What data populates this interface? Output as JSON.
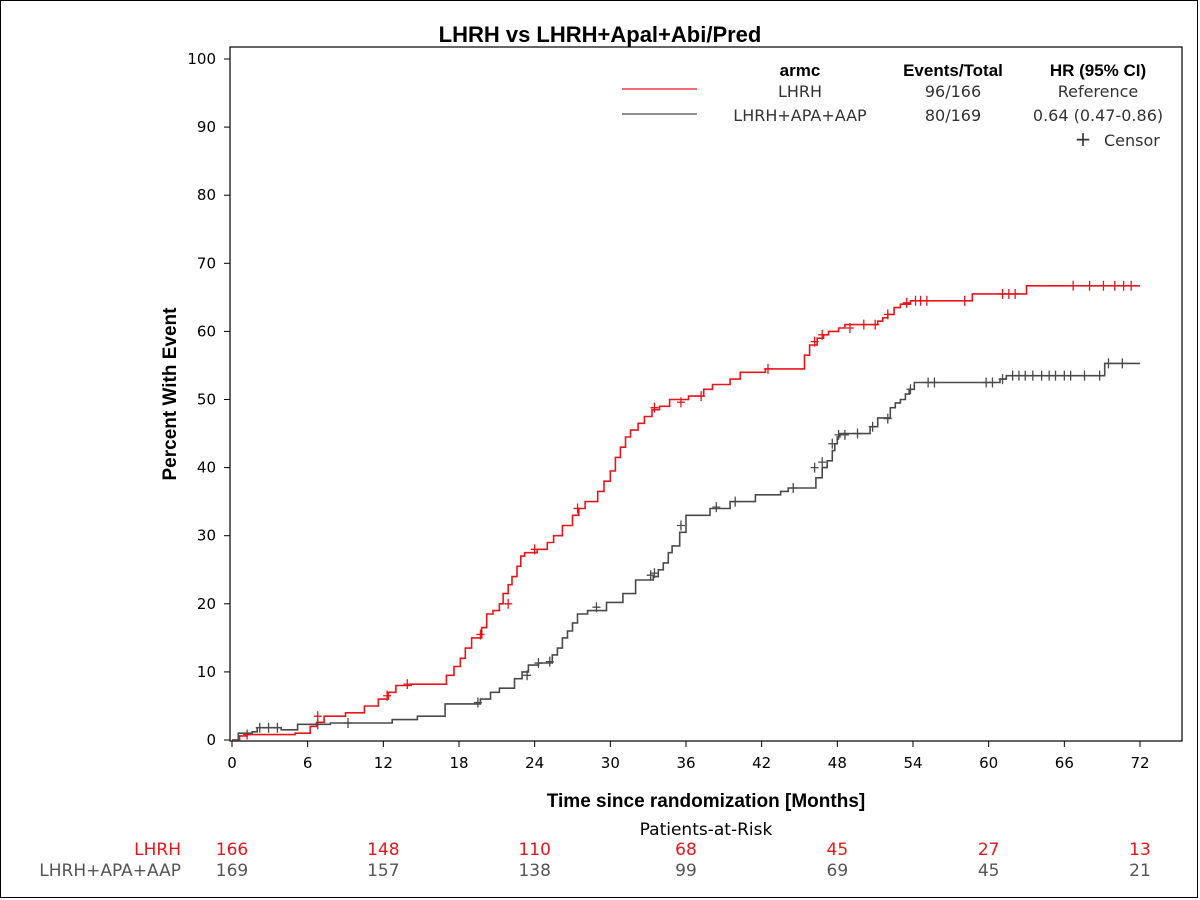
{
  "chart_data": {
    "type": "line",
    "title": "LHRH vs LHRH+Apal+Abi/Pred",
    "xlabel": "Time since randomization [Months]",
    "ylabel": "Percent With Event",
    "xlim": [
      0,
      72
    ],
    "ylim": [
      0,
      100
    ],
    "x_ticks": [
      "0",
      "6",
      "12",
      "18",
      "24",
      "30",
      "36",
      "42",
      "48",
      "54",
      "60",
      "66",
      "72"
    ],
    "y_ticks": [
      "0",
      "10",
      "20",
      "30",
      "40",
      "50",
      "60",
      "70",
      "80",
      "90",
      "100"
    ],
    "legend": {
      "headers": [
        "armc",
        "Events/Total",
        "HR (95% CI)"
      ],
      "rows": [
        {
          "name": "LHRH",
          "events": "96/166",
          "hr": "Reference"
        },
        {
          "name": "LHRH+APA+AAP",
          "events": "80/169",
          "hr": "0.64 (0.47-0.86)"
        }
      ],
      "censor_symbol": "+",
      "censor_label": "Censor",
      "placement": "top-right"
    },
    "series": [
      {
        "name": "LHRH",
        "color": "#e8151b",
        "x": [
          0,
          0.6,
          1.2,
          5,
          6.2,
          6.7,
          7.3,
          9,
          10.5,
          11.6,
          12.4,
          13,
          14.2,
          17,
          17.6,
          18.1,
          18.5,
          19,
          19.8,
          20.2,
          20.7,
          21.2,
          21.5,
          21.9,
          22.2,
          22.6,
          22.9,
          23.2,
          24.2,
          25,
          25.5,
          26.2,
          27,
          27.5,
          28,
          29,
          29.5,
          30,
          30.4,
          30.8,
          31.2,
          31.6,
          32.2,
          32.7,
          33.3,
          33.9,
          34.7,
          36.2,
          37.4,
          38.1,
          39.5,
          40.3,
          42.3,
          45.4,
          45.8,
          46.4,
          46.9,
          47.3,
          48.1,
          48.6,
          49,
          51.2,
          51.6,
          52,
          52.5,
          53,
          53.8,
          54.1,
          58.7,
          63,
          68,
          72
        ],
        "y": [
          0,
          0.6,
          0.8,
          1,
          2,
          2.6,
          3.5,
          4,
          5,
          6,
          7,
          8,
          8.2,
          9.5,
          10.8,
          12,
          13.5,
          15,
          16.5,
          18.5,
          19,
          20,
          21.5,
          22.8,
          24,
          25.5,
          27,
          27.5,
          28,
          29,
          30,
          31.5,
          33,
          34,
          35,
          36.5,
          38,
          39.5,
          41.5,
          43,
          44.5,
          45.5,
          46.5,
          47.5,
          48.5,
          49,
          50,
          50.5,
          51.5,
          52.2,
          53,
          54,
          54.5,
          56.5,
          58,
          59,
          59.5,
          60,
          60.5,
          61,
          61,
          61.5,
          62,
          62.5,
          63.5,
          64,
          64.5,
          64.5,
          65.5,
          66.7,
          66.7,
          66.7
        ],
        "censors_x": [
          1.2,
          6.8,
          12.3,
          13.9,
          19.7,
          21.9,
          24,
          27.4,
          33.5,
          35.6,
          37.2,
          42.5,
          46.2,
          46.8,
          49,
          50.1,
          51,
          52,
          53.5,
          54.2,
          54.6,
          55.1,
          58.1,
          61.1,
          61.6,
          62.1,
          66.7,
          68,
          69.1,
          70,
          70.7,
          71.3
        ],
        "censors_y": [
          0.8,
          3.5,
          6.5,
          8.2,
          15.5,
          20,
          28,
          34,
          48.8,
          49.6,
          50.5,
          54.5,
          58.5,
          59.5,
          60.5,
          61,
          61,
          62.5,
          64.2,
          64.5,
          64.5,
          64.5,
          64.5,
          65.5,
          65.5,
          65.5,
          66.7,
          66.7,
          66.7,
          66.7,
          66.7,
          66.7
        ]
      },
      {
        "name": "LHRH+APA+AAP",
        "color": "#4a4a4a",
        "x": [
          0,
          0.5,
          1.6,
          2,
          3.9,
          5.2,
          7.8,
          12.7,
          14.7,
          16.9,
          19.7,
          20.5,
          21.2,
          22.4,
          23,
          23.5,
          24.3,
          25.4,
          25.8,
          26.2,
          26.6,
          27,
          27.4,
          28.2,
          29.7,
          31,
          32,
          33.4,
          33.8,
          34.2,
          34.6,
          34.9,
          35.5,
          36,
          37.9,
          39.5,
          41.5,
          43.5,
          44.1,
          46.3,
          46.8,
          47.2,
          47.6,
          47.8,
          48,
          48.2,
          50.6,
          51.2,
          52.2,
          52.6,
          53,
          53.4,
          53.7,
          54.1,
          60.1,
          60.9,
          61.4,
          62.2,
          69.2,
          72
        ],
        "y": [
          0,
          1,
          1.2,
          1.8,
          1.5,
          2.3,
          2.5,
          3,
          3.5,
          5.3,
          6,
          7,
          7.6,
          9,
          10,
          11,
          11.3,
          12.5,
          13.5,
          15,
          16,
          17.2,
          18.5,
          19,
          20.2,
          21.5,
          23.5,
          24,
          25,
          26,
          27.5,
          28.5,
          30.5,
          33,
          34,
          35,
          36,
          36.5,
          37,
          38.5,
          40,
          41,
          42.5,
          43.5,
          44.5,
          45,
          46,
          47.3,
          48.8,
          49.5,
          50,
          50.8,
          51.5,
          52.5,
          52.5,
          53,
          53.5,
          53.5,
          55.3,
          55.3
        ],
        "censors_x": [
          2.2,
          2.9,
          3.6,
          6.8,
          9.2,
          19.5,
          23.4,
          24.3,
          25.2,
          28.9,
          33.2,
          33.5,
          35.6,
          38.4,
          39.9,
          44.5,
          46.2,
          46.8,
          47.6,
          48.1,
          48.6,
          49.6,
          50.8,
          52,
          53.8,
          55.2,
          55.7,
          59.8,
          60.3,
          61.1,
          61.9,
          62.4,
          62.9,
          63.5,
          64.2,
          64.8,
          65.3,
          66,
          66.5,
          67.6,
          68.8,
          69.5,
          70.6
        ],
        "censors_y": [
          1.8,
          1.8,
          1.8,
          2.3,
          2.5,
          5.5,
          9.5,
          11.3,
          11.5,
          19.5,
          24.2,
          24.5,
          31.5,
          34.2,
          35,
          37,
          40,
          40.8,
          43.5,
          44.8,
          44.8,
          45,
          46,
          47.2,
          51.5,
          52.5,
          52.5,
          52.5,
          52.5,
          53,
          53.5,
          53.5,
          53.5,
          53.5,
          53.5,
          53.5,
          53.5,
          53.5,
          53.5,
          53.5,
          53.5,
          55.3,
          55.3
        ]
      }
    ],
    "at_risk": {
      "title": "Patients-at-Risk",
      "times": [
        0,
        12,
        24,
        36,
        48,
        60,
        72
      ],
      "rows": [
        {
          "name": "LHRH",
          "color": "#e8151b",
          "values": [
            "166",
            "148",
            "110",
            "68",
            "45",
            "27",
            "13"
          ]
        },
        {
          "name": "LHRH+APA+AAP",
          "color": "#555555",
          "values": [
            "169",
            "157",
            "138",
            "99",
            "69",
            "45",
            "21"
          ]
        }
      ]
    }
  }
}
